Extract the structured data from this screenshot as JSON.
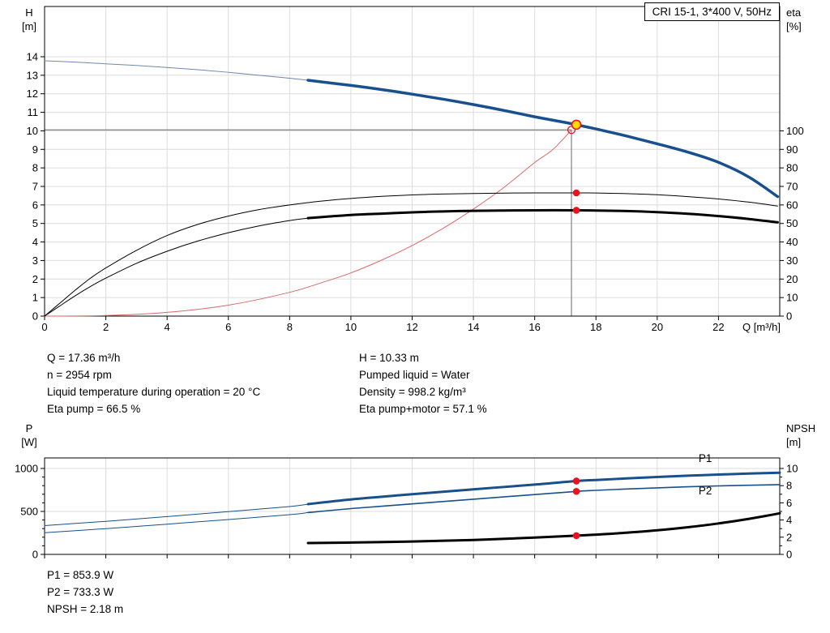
{
  "colors": {
    "curve_blue": "#17508c",
    "curve_blue_thin": "#6d89ac",
    "black": "#000000",
    "red": "#e8131d",
    "system_red": "#d96a6a",
    "yellow": "#ffd900",
    "gray_line": "#808080",
    "grid": "#dcdcdc",
    "label_blue": "#17508c"
  },
  "info_top": {
    "left": [
      "Q = 17.36 m³/h",
      "n = 2954 rpm",
      "Liquid temperature during operation = 20 °C",
      "Eta pump = 66.5 %"
    ],
    "right": [
      "H = 10.33 m",
      "Pumped liquid = Water",
      "Density = 998.2 kg/m³",
      "Eta pump+motor = 57.1 %"
    ]
  },
  "info_bottom": [
    "P1 = 853.9 W",
    "P2 = 733.3 W",
    "NPSH = 2.18 m"
  ],
  "chart_data": [
    {
      "type": "line",
      "name": "head-efficiency-chart",
      "title": "CRI 15-1, 3*400 V, 50Hz",
      "x": {
        "label": "Q [m³/h]",
        "min": 0,
        "max": 24,
        "ticks": [
          0,
          2,
          4,
          6,
          8,
          10,
          12,
          14,
          16,
          18,
          20,
          22
        ]
      },
      "y_left": {
        "label": [
          "H",
          "[m]"
        ],
        "min": 0,
        "max": 14,
        "ticks": [
          0,
          1,
          2,
          3,
          4,
          5,
          6,
          7,
          8,
          9,
          10,
          11,
          12,
          13,
          14
        ]
      },
      "y_right": {
        "label": [
          "eta",
          "[%]"
        ],
        "min": 0,
        "max": 100,
        "ticks": [
          0,
          10,
          20,
          30,
          40,
          50,
          60,
          70,
          80,
          90,
          100
        ]
      },
      "duty_point": {
        "q": 17.36,
        "h": 10.33,
        "eta_pump": 66.5,
        "eta_pump_motor": 57.1
      },
      "crosshair": {
        "q": 17.2,
        "v": 10.05
      },
      "series": [
        {
          "name": "system-curve",
          "axis": "left",
          "color": "system_red",
          "width": 1,
          "points": [
            [
              0,
              0
            ],
            [
              2,
              0.03
            ],
            [
              4,
              0.2
            ],
            [
              6,
              0.59
            ],
            [
              8,
              1.28
            ],
            [
              9,
              1.78
            ],
            [
              10,
              2.33
            ],
            [
              11,
              3.02
            ],
            [
              12,
              3.81
            ],
            [
              13,
              4.73
            ],
            [
              14,
              5.78
            ],
            [
              15,
              6.95
            ],
            [
              16,
              8.29
            ],
            [
              16.6,
              9.0
            ],
            [
              17.2,
              10.05
            ]
          ]
        },
        {
          "name": "eta-pump-curve",
          "axis": "right",
          "color": "black",
          "width": 1,
          "points": [
            [
              0,
              0
            ],
            [
              0.5,
              7
            ],
            [
              1,
              14
            ],
            [
              1.5,
              20.5
            ],
            [
              2,
              26
            ],
            [
              3,
              35.5
            ],
            [
              4,
              43.5
            ],
            [
              5,
              49.5
            ],
            [
              6,
              54
            ],
            [
              7,
              57.5
            ],
            [
              8,
              60
            ],
            [
              9,
              62
            ],
            [
              10,
              63.5
            ],
            [
              11,
              64.6
            ],
            [
              12,
              65.4
            ],
            [
              13,
              65.9
            ],
            [
              14,
              66.2
            ],
            [
              15,
              66.4
            ],
            [
              16,
              66.5
            ],
            [
              17.36,
              66.5
            ],
            [
              18,
              66.45
            ],
            [
              19,
              66.1
            ],
            [
              20,
              65.5
            ],
            [
              21,
              64.5
            ],
            [
              22,
              63.2
            ],
            [
              23,
              61.5
            ],
            [
              23.93,
              59.4
            ]
          ]
        },
        {
          "name": "eta-pump-motor-curve-thin",
          "axis": "right",
          "color": "black",
          "width": 1,
          "points": [
            [
              0,
              0
            ],
            [
              0.5,
              5.5
            ],
            [
              1,
              11
            ],
            [
              1.5,
              16
            ],
            [
              2,
              20.5
            ],
            [
              3,
              28.5
            ],
            [
              4,
              35
            ],
            [
              5,
              40.5
            ],
            [
              6,
              45
            ],
            [
              7,
              48.7
            ],
            [
              8,
              51.6
            ],
            [
              8.6,
              52.9
            ]
          ]
        },
        {
          "name": "eta-pump-motor-curve",
          "axis": "right",
          "color": "black",
          "width": 3,
          "points": [
            [
              8.6,
              52.9
            ],
            [
              10,
              54.6
            ],
            [
              11,
              55.3
            ],
            [
              12,
              56.0
            ],
            [
              13,
              56.5
            ],
            [
              14,
              56.85
            ],
            [
              15,
              57.0
            ],
            [
              16,
              57.1
            ],
            [
              17.36,
              57.1
            ],
            [
              18,
              57.0
            ],
            [
              19,
              56.7
            ],
            [
              20,
              56.1
            ],
            [
              21,
              55.2
            ],
            [
              22,
              54.0
            ],
            [
              23,
              52.4
            ],
            [
              23.93,
              50.6
            ]
          ]
        },
        {
          "name": "pump-curve-thin",
          "axis": "left",
          "color": "curve_blue_thin",
          "width": 1,
          "points": [
            [
              0,
              13.78
            ],
            [
              1,
              13.71
            ],
            [
              2,
              13.62
            ],
            [
              3,
              13.53
            ],
            [
              4,
              13.42
            ],
            [
              5,
              13.3
            ],
            [
              6,
              13.16
            ],
            [
              7,
              13.0
            ],
            [
              8,
              12.84
            ],
            [
              8.6,
              12.73
            ]
          ]
        },
        {
          "name": "pump-curve",
          "axis": "left",
          "color": "curve_blue",
          "width": 3.5,
          "points": [
            [
              8.6,
              12.73
            ],
            [
              10,
              12.45
            ],
            [
              11,
              12.23
            ],
            [
              12,
              11.98
            ],
            [
              13,
              11.71
            ],
            [
              14,
              11.42
            ],
            [
              15,
              11.1
            ],
            [
              16,
              10.76
            ],
            [
              17,
              10.45
            ],
            [
              17.36,
              10.33
            ],
            [
              18,
              10.1
            ],
            [
              19,
              9.72
            ],
            [
              20,
              9.3
            ],
            [
              21,
              8.85
            ],
            [
              22,
              8.3
            ],
            [
              23,
              7.5
            ],
            [
              23.93,
              6.45
            ]
          ]
        }
      ],
      "markers": [
        {
          "name": "requested-duty-point",
          "axis": "left",
          "q": 17.2,
          "v": 10.05,
          "style": "open-red"
        },
        {
          "name": "eta-pump-point",
          "axis": "right",
          "q": 17.36,
          "v": 66.5,
          "style": "red"
        },
        {
          "name": "eta-pump-motor-point",
          "axis": "right",
          "q": 17.36,
          "v": 57.1,
          "style": "red"
        },
        {
          "name": "duty-point",
          "axis": "left",
          "q": 17.36,
          "v": 10.33,
          "style": "yellow-red"
        }
      ]
    },
    {
      "type": "line",
      "name": "power-npsh-chart",
      "title": "",
      "x": {
        "label": "",
        "min": 0,
        "max": 24,
        "ticks": [
          0,
          2,
          4,
          6,
          8,
          10,
          12,
          14,
          16,
          18,
          20,
          22
        ]
      },
      "y_left": {
        "label": [
          "P",
          "[W]"
        ],
        "min": 0,
        "max": 1000,
        "ticks": [
          0,
          500,
          1000
        ],
        "minor": [
          100,
          200,
          300,
          400,
          600,
          700,
          800,
          900
        ]
      },
      "y_right": {
        "label": [
          "NPSH",
          "[m]"
        ],
        "min": 0,
        "max": 10,
        "ticks": [
          0,
          2,
          4,
          6,
          8,
          10
        ],
        "minor": [
          1,
          3,
          5,
          7,
          9
        ]
      },
      "series": [
        {
          "name": "p1-curve-thin",
          "axis": "left",
          "color": "curve_blue",
          "width": 1,
          "points": [
            [
              0,
              335
            ],
            [
              2,
              385
            ],
            [
              4,
              440
            ],
            [
              6,
              498
            ],
            [
              8,
              557
            ],
            [
              8.6,
              585
            ]
          ]
        },
        {
          "name": "p1-curve",
          "axis": "left",
          "color": "curve_blue",
          "width": 3,
          "points": [
            [
              8.6,
              585
            ],
            [
              10,
              640
            ],
            [
              12,
              700
            ],
            [
              14,
              758
            ],
            [
              16,
              812
            ],
            [
              17.36,
              854
            ],
            [
              18,
              866
            ],
            [
              19,
              884
            ],
            [
              20,
              901
            ],
            [
              21,
              916
            ],
            [
              22,
              929
            ],
            [
              23,
              941
            ],
            [
              24,
              951
            ]
          ]
        },
        {
          "name": "p2-curve-thin",
          "axis": "left",
          "color": "curve_blue",
          "width": 1,
          "points": [
            [
              0,
              253
            ],
            [
              2,
              300
            ],
            [
              4,
              352
            ],
            [
              6,
              406
            ],
            [
              8,
              462
            ],
            [
              8.6,
              487
            ]
          ]
        },
        {
          "name": "p2-curve",
          "axis": "left",
          "color": "curve_blue",
          "width": 1.6,
          "points": [
            [
              8.6,
              487
            ],
            [
              10,
              533
            ],
            [
              12,
              588
            ],
            [
              14,
              642
            ],
            [
              16,
              696
            ],
            [
              17.36,
              733
            ],
            [
              18,
              745
            ],
            [
              19,
              761
            ],
            [
              20,
              775
            ],
            [
              21,
              787
            ],
            [
              22,
              797
            ],
            [
              23,
              805
            ],
            [
              24,
              812
            ]
          ]
        },
        {
          "name": "npsh-curve",
          "axis": "right",
          "color": "black",
          "width": 3,
          "points": [
            [
              8.6,
              1.32
            ],
            [
              10,
              1.38
            ],
            [
              12,
              1.5
            ],
            [
              14,
              1.68
            ],
            [
              16,
              1.95
            ],
            [
              17.36,
              2.18
            ],
            [
              18,
              2.3
            ],
            [
              19,
              2.52
            ],
            [
              20,
              2.8
            ],
            [
              21,
              3.16
            ],
            [
              22,
              3.6
            ],
            [
              23,
              4.14
            ],
            [
              24,
              4.78
            ]
          ]
        }
      ],
      "series_labels": [
        {
          "text": "P1",
          "axis": "left",
          "q": 21.35,
          "v": 1075
        },
        {
          "text": "P2",
          "axis": "left",
          "q": 21.35,
          "v": 700
        }
      ],
      "markers": [
        {
          "name": "p1-point",
          "axis": "left",
          "q": 17.36,
          "v": 853.9,
          "style": "red"
        },
        {
          "name": "p2-point",
          "axis": "left",
          "q": 17.36,
          "v": 733.3,
          "style": "red"
        },
        {
          "name": "npsh-point",
          "axis": "right",
          "q": 17.36,
          "v": 2.18,
          "style": "red"
        }
      ]
    }
  ]
}
